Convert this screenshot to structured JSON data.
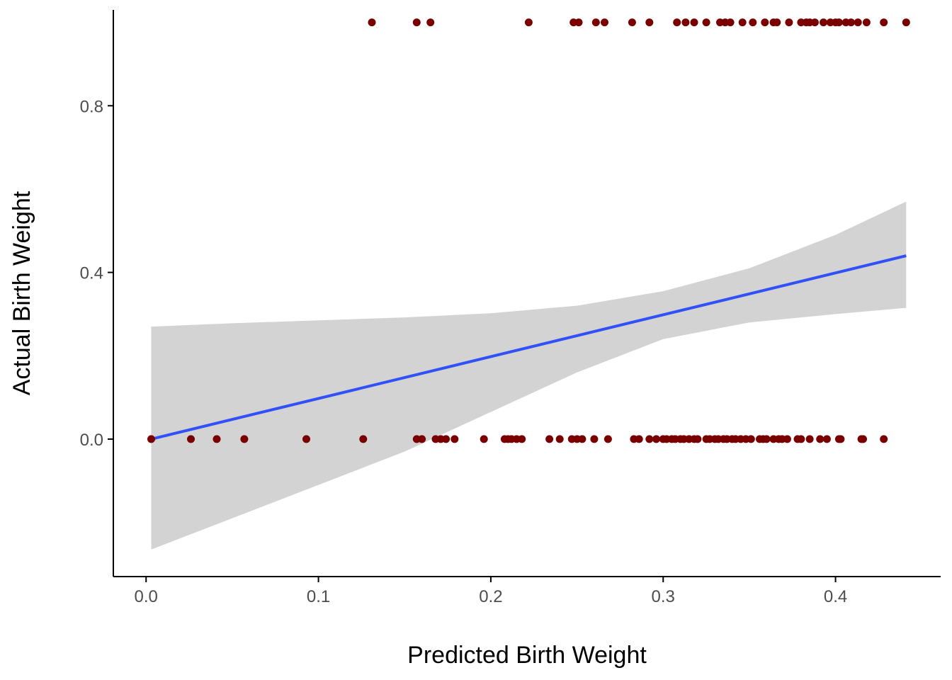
{
  "chart_data": {
    "type": "scatter",
    "title": "",
    "xlabel": "Predicted Birth Weight",
    "ylabel": "Actual Birth Weight",
    "xlim": [
      -0.019,
      0.461
    ],
    "ylim": [
      -0.33,
      1.03
    ],
    "x_ticks": [
      0.0,
      0.1,
      0.2,
      0.3,
      0.4
    ],
    "x_tick_labels": [
      "0.0",
      "0.1",
      "0.2",
      "0.3",
      "0.4"
    ],
    "y_ticks": [
      0.0,
      0.4,
      0.8
    ],
    "y_tick_labels": [
      "0.0",
      "0.4",
      "0.8"
    ],
    "grid": false,
    "colors": {
      "points": "#7a0000",
      "fit_line": "#3050f8",
      "confidence_band": "#d3d3d3",
      "axis": "#000000"
    },
    "series": [
      {
        "kind": "points",
        "y": 1,
        "x": [
          0.131,
          0.157,
          0.165,
          0.222,
          0.248,
          0.251,
          0.261,
          0.266,
          0.282,
          0.292,
          0.308,
          0.313,
          0.318,
          0.325,
          0.333,
          0.336,
          0.339,
          0.346,
          0.352,
          0.359,
          0.364,
          0.366,
          0.373,
          0.38,
          0.383,
          0.385,
          0.388,
          0.393,
          0.397,
          0.4,
          0.402,
          0.406,
          0.409,
          0.413,
          0.418,
          0.428,
          0.441
        ]
      },
      {
        "kind": "points",
        "y": 0,
        "x": [
          0.003,
          0.026,
          0.041,
          0.057,
          0.093,
          0.126,
          0.157,
          0.16,
          0.168,
          0.171,
          0.174,
          0.179,
          0.196,
          0.208,
          0.21,
          0.212,
          0.215,
          0.218,
          0.234,
          0.24,
          0.247,
          0.25,
          0.253,
          0.26,
          0.268,
          0.283,
          0.286,
          0.292,
          0.296,
          0.3,
          0.302,
          0.305,
          0.307,
          0.31,
          0.312,
          0.315,
          0.318,
          0.32,
          0.325,
          0.327,
          0.33,
          0.332,
          0.335,
          0.337,
          0.34,
          0.342,
          0.345,
          0.348,
          0.351,
          0.356,
          0.358,
          0.36,
          0.364,
          0.367,
          0.369,
          0.372,
          0.378,
          0.38,
          0.385,
          0.391,
          0.395,
          0.402,
          0.403,
          0.415,
          0.416,
          0.428
        ]
      }
    ],
    "fit": {
      "kind": "linear",
      "x": [
        0.003,
        0.441
      ],
      "y": [
        0.0,
        0.44
      ]
    },
    "confidence_band": {
      "x": [
        0.003,
        0.05,
        0.1,
        0.15,
        0.2,
        0.25,
        0.3,
        0.35,
        0.4,
        0.441
      ],
      "upper": [
        0.27,
        0.278,
        0.285,
        0.292,
        0.302,
        0.32,
        0.355,
        0.41,
        0.49,
        0.57
      ],
      "lower": [
        -0.265,
        -0.19,
        -0.11,
        -0.03,
        0.065,
        0.16,
        0.24,
        0.28,
        0.3,
        0.315
      ]
    }
  }
}
